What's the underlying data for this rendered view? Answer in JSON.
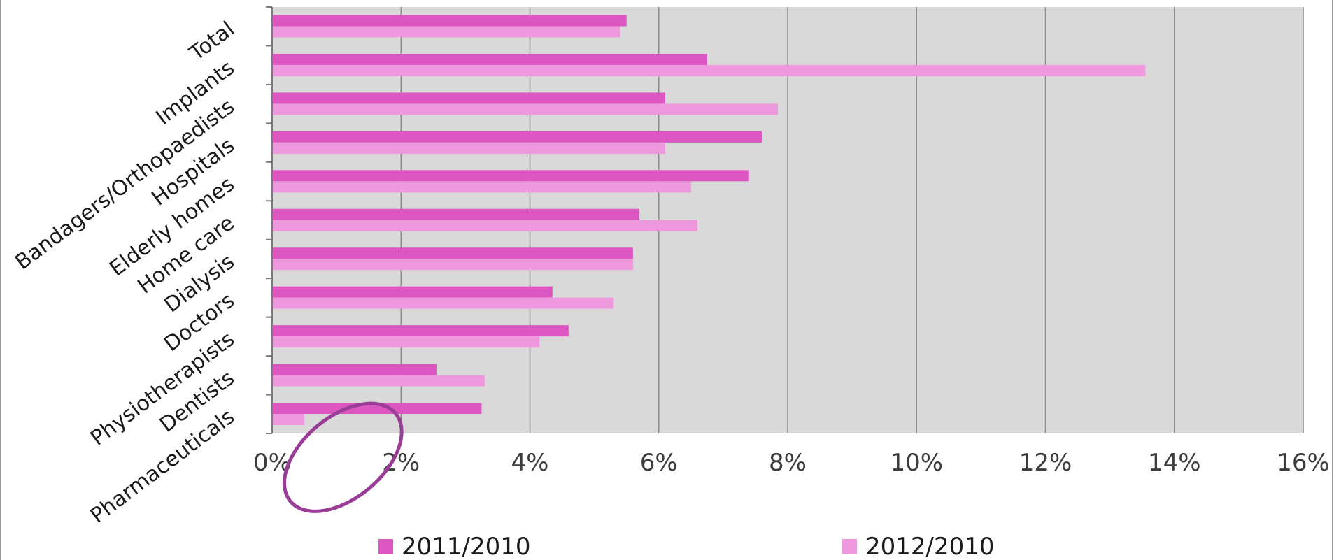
{
  "chart_data": {
    "type": "bar",
    "orientation": "horizontal",
    "categories": [
      "Total",
      "Implants",
      "Bandagers/Orthopaedists",
      "Hospitals",
      "Elderly homes",
      "Home care",
      "Dialysis",
      "Doctors",
      "Physiotherapists",
      "Dentists",
      "Pharmaceuticals"
    ],
    "series": [
      {
        "name": "2011/2010",
        "color": "#dd55c0",
        "values": [
          5.5,
          6.75,
          6.1,
          7.6,
          7.4,
          5.7,
          5.6,
          4.35,
          4.6,
          2.55,
          3.25
        ]
      },
      {
        "name": "2012/2010",
        "color": "#ee99dd",
        "values": [
          5.4,
          13.55,
          7.85,
          6.1,
          6.5,
          6.6,
          5.6,
          5.3,
          4.15,
          3.3,
          0.5
        ]
      }
    ],
    "xlim": [
      0,
      16
    ],
    "x_ticks": [
      "0%",
      "2%",
      "4%",
      "6%",
      "8%",
      "10%",
      "12%",
      "14%",
      "16%"
    ],
    "grid": true,
    "legend_position": "bottom",
    "plot_background": "#d9d9d9",
    "annotation": {
      "shape": "ellipse",
      "color": "#9a3d97",
      "target_category": "Pharmaceuticals"
    }
  }
}
